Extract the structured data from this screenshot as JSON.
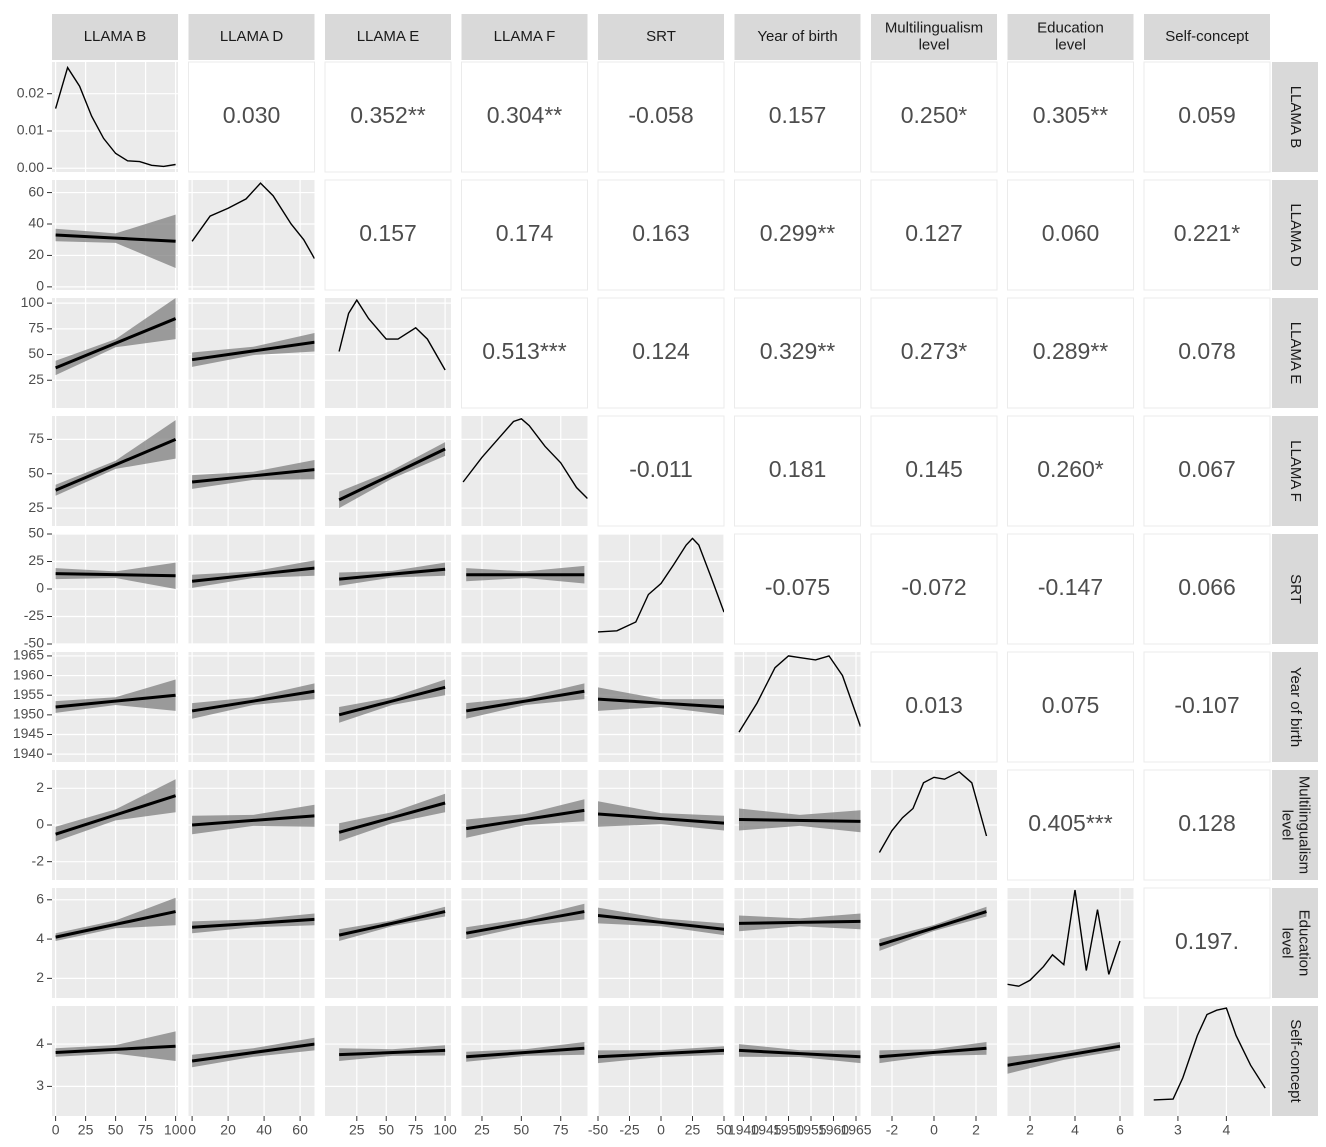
{
  "chart_data": {
    "type": "pairs",
    "variables": [
      {
        "name": [
          "LLAMA B"
        ],
        "lim": [
          -3,
          102
        ],
        "ticks": [
          0,
          25,
          50,
          75,
          100
        ],
        "range": [
          0,
          100
        ],
        "density_x": [
          0,
          10,
          20,
          30,
          40,
          50,
          60,
          70,
          80,
          90,
          100
        ],
        "density": [
          0.016,
          0.027,
          0.022,
          0.014,
          0.008,
          0.004,
          0.002,
          0.0018,
          0.0008,
          0.0005,
          0.001
        ]
      },
      {
        "name": [
          "LLAMA D"
        ],
        "lim": [
          -2,
          68
        ],
        "ticks": [
          0,
          20,
          40,
          60
        ],
        "range": [
          0,
          68
        ],
        "density_x": [
          0,
          10,
          20,
          30,
          38,
          45,
          55,
          62,
          68
        ],
        "density": [
          29,
          45,
          50,
          56,
          66,
          58,
          40,
          30,
          18
        ]
      },
      {
        "name": [
          "LLAMA E"
        ],
        "lim": [
          -2,
          105
        ],
        "ticks": [
          25,
          50,
          75,
          100
        ],
        "range": [
          10,
          100
        ],
        "density_x": [
          10,
          18,
          25,
          35,
          50,
          60,
          75,
          85,
          100
        ],
        "density": [
          53,
          90,
          103,
          85,
          65,
          65,
          76,
          65,
          35
        ]
      },
      {
        "name": [
          "LLAMA F"
        ],
        "lim": [
          12,
          92
        ],
        "ticks": [
          25,
          50,
          75
        ],
        "range": [
          15,
          90
        ],
        "density_x": [
          13,
          25,
          35,
          45,
          50,
          55,
          65,
          75,
          85,
          92
        ],
        "density": [
          44,
          62,
          75,
          88,
          90,
          85,
          70,
          58,
          40,
          32
        ]
      },
      {
        "name": [
          "SRT"
        ],
        "lim": [
          -50,
          50
        ],
        "ticks": [
          -50,
          -25,
          0,
          25,
          50
        ],
        "range": [
          -50,
          50
        ],
        "density_x": [
          -50,
          -35,
          -20,
          -10,
          0,
          10,
          20,
          25,
          30,
          40,
          50
        ],
        "density": [
          -39,
          -38,
          -30,
          -5,
          5,
          22,
          40,
          46,
          40,
          10,
          -21
        ]
      },
      {
        "name": [
          "Year of birth"
        ],
        "lim": [
          1938,
          1966
        ],
        "ticks": [
          1940,
          1945,
          1950,
          1955,
          1960,
          1965
        ],
        "range": [
          1939,
          1966
        ],
        "density_x": [
          1939,
          1943,
          1947,
          1950,
          1953,
          1956,
          1959,
          1962,
          1966
        ],
        "density": [
          1945.6,
          1953,
          1962,
          1965,
          1964.5,
          1964,
          1965,
          1960,
          1947
        ]
      },
      {
        "name": [
          "Multilingualism",
          "level"
        ],
        "lim": [
          -3,
          3
        ],
        "ticks": [
          -2,
          0,
          2
        ],
        "range": [
          -2.6,
          2.5
        ],
        "density_x": [
          -2.6,
          -2,
          -1.5,
          -1,
          -0.5,
          0,
          0.5,
          1.2,
          1.8,
          2.5
        ],
        "density": [
          -1.5,
          -0.3,
          0.4,
          0.9,
          2.3,
          2.6,
          2.5,
          2.9,
          2.3,
          -0.6
        ]
      },
      {
        "name": [
          "Education",
          "level"
        ],
        "lim": [
          1,
          6.6
        ],
        "ticks": [
          2,
          4,
          6
        ],
        "range": [
          1,
          6
        ],
        "density_x": [
          1,
          1.5,
          2,
          2.6,
          3,
          3.5,
          4,
          4.5,
          5,
          5.5,
          6
        ],
        "density": [
          1.7,
          1.6,
          1.9,
          2.6,
          3.2,
          2.7,
          6.5,
          2.4,
          5.5,
          2.2,
          3.9
        ]
      },
      {
        "name": [
          "Self-concept"
        ],
        "lim": [
          2.3,
          4.9
        ],
        "ticks": [
          3,
          4
        ],
        "range": [
          2.5,
          4.8
        ],
        "density_x": [
          2.5,
          2.9,
          3.1,
          3.4,
          3.6,
          3.8,
          4,
          4.2,
          4.5,
          4.8
        ],
        "density": [
          2.68,
          2.7,
          3.2,
          4.2,
          4.7,
          4.8,
          4.85,
          4.2,
          3.5,
          2.96
        ]
      }
    ],
    "density_lim": [
      -0.001,
      0.0285
    ],
    "density_ticks": [
      {
        "value": 0,
        "label": "0.00"
      },
      {
        "value": 0.01,
        "label": "0.01"
      },
      {
        "value": 0.02,
        "label": "0.02"
      }
    ],
    "correlations": [
      [
        "0.030",
        "0.352**",
        "0.304**",
        "-0.058",
        "0.157",
        "0.250*",
        "0.305**",
        "0.059"
      ],
      [
        "0.157",
        "0.174",
        "0.163",
        "0.299**",
        "0.127",
        "0.060",
        "0.221*"
      ],
      [
        "0.513***",
        "0.124",
        "0.329**",
        "0.273*",
        "0.289**",
        "0.078"
      ],
      [
        "-0.011",
        "0.181",
        "0.145",
        "0.260*",
        "0.067"
      ],
      [
        "-0.075",
        "-0.072",
        "-0.147",
        "0.066"
      ],
      [
        "0.013",
        "0.075",
        "-0.107"
      ],
      [
        "0.405***",
        "0.128"
      ],
      [
        "0.197."
      ]
    ],
    "fits": [
      [],
      [
        {
          "fit": [
            33,
            29
          ],
          "ci": [
            4,
            3,
            17
          ]
        }
      ],
      [
        {
          "fit": [
            37,
            85
          ],
          "ci": [
            7,
            4,
            20
          ]
        },
        {
          "fit": [
            45,
            62
          ],
          "ci": [
            7,
            4,
            9
          ]
        }
      ],
      [
        {
          "fit": [
            38,
            75
          ],
          "ci": [
            4,
            3,
            14
          ]
        },
        {
          "fit": [
            44,
            53
          ],
          "ci": [
            5,
            3,
            7
          ]
        },
        {
          "fit": [
            31,
            68
          ],
          "ci": [
            6,
            3,
            5
          ]
        }
      ],
      [
        {
          "fit": [
            14,
            12
          ],
          "ci": [
            5,
            3,
            12
          ]
        },
        {
          "fit": [
            7,
            19
          ],
          "ci": [
            6,
            3,
            7
          ]
        },
        {
          "fit": [
            9,
            18
          ],
          "ci": [
            6,
            3,
            6
          ]
        },
        {
          "fit": [
            13,
            13
          ],
          "ci": [
            6,
            3,
            8
          ]
        }
      ],
      [
        {
          "fit": [
            1952,
            1955
          ],
          "ci": [
            1.5,
            1,
            4
          ]
        },
        {
          "fit": [
            1951,
            1956
          ],
          "ci": [
            2,
            1,
            2
          ]
        },
        {
          "fit": [
            1950,
            1957
          ],
          "ci": [
            2,
            1,
            2
          ]
        },
        {
          "fit": [
            1951,
            1956
          ],
          "ci": [
            2,
            1,
            2
          ]
        },
        {
          "fit": [
            1954,
            1952
          ],
          "ci": [
            3,
            1,
            2
          ]
        }
      ],
      [
        {
          "fit": [
            -0.5,
            1.6
          ],
          "ci": [
            0.4,
            0.3,
            0.9
          ]
        },
        {
          "fit": [
            0,
            0.5
          ],
          "ci": [
            0.5,
            0.3,
            0.6
          ]
        },
        {
          "fit": [
            -0.4,
            1.2
          ],
          "ci": [
            0.5,
            0.3,
            0.5
          ]
        },
        {
          "fit": [
            -0.2,
            0.8
          ],
          "ci": [
            0.5,
            0.3,
            0.6
          ]
        },
        {
          "fit": [
            0.6,
            0.1
          ],
          "ci": [
            0.7,
            0.3,
            0.4
          ]
        },
        {
          "fit": [
            0.3,
            0.2
          ],
          "ci": [
            0.6,
            0.3,
            0.6
          ]
        }
      ],
      [
        {
          "fit": [
            4.1,
            5.4
          ],
          "ci": [
            0.2,
            0.2,
            0.7
          ]
        },
        {
          "fit": [
            4.6,
            5.0
          ],
          "ci": [
            0.3,
            0.2,
            0.3
          ]
        },
        {
          "fit": [
            4.2,
            5.4
          ],
          "ci": [
            0.3,
            0.15,
            0.25
          ]
        },
        {
          "fit": [
            4.3,
            5.4
          ],
          "ci": [
            0.3,
            0.2,
            0.4
          ]
        },
        {
          "fit": [
            5.2,
            4.5
          ],
          "ci": [
            0.4,
            0.2,
            0.3
          ]
        },
        {
          "fit": [
            4.8,
            4.9
          ],
          "ci": [
            0.4,
            0.2,
            0.4
          ]
        },
        {
          "fit": [
            3.7,
            5.4
          ],
          "ci": [
            0.3,
            0.15,
            0.25
          ]
        }
      ],
      [
        {
          "fit": [
            3.8,
            3.95
          ],
          "ci": [
            0.1,
            0.1,
            0.35
          ]
        },
        {
          "fit": [
            3.6,
            4.0
          ],
          "ci": [
            0.15,
            0.1,
            0.15
          ]
        },
        {
          "fit": [
            3.75,
            3.85
          ],
          "ci": [
            0.15,
            0.08,
            0.12
          ]
        },
        {
          "fit": [
            3.7,
            3.9
          ],
          "ci": [
            0.12,
            0.08,
            0.15
          ]
        },
        {
          "fit": [
            3.7,
            3.85
          ],
          "ci": [
            0.15,
            0.08,
            0.1
          ]
        },
        {
          "fit": [
            3.85,
            3.7
          ],
          "ci": [
            0.15,
            0.08,
            0.15
          ]
        },
        {
          "fit": [
            3.7,
            3.9
          ],
          "ci": [
            0.15,
            0.08,
            0.15
          ]
        },
        {
          "fit": [
            3.5,
            3.95
          ],
          "ci": [
            0.2,
            0.1,
            0.1
          ]
        }
      ]
    ]
  }
}
